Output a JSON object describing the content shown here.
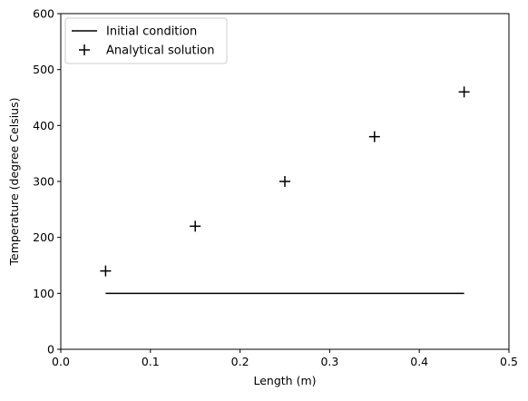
{
  "chart_data": {
    "type": "line",
    "title": "",
    "xlabel": "Length (m)",
    "ylabel": "Temperature (degree Celsius)",
    "xlim": [
      0.0,
      0.5
    ],
    "ylim": [
      0,
      600
    ],
    "xticks": [
      0.0,
      0.1,
      0.2,
      0.3,
      0.4,
      0.5
    ],
    "xtick_labels": [
      "0.0",
      "0.1",
      "0.2",
      "0.3",
      "0.4",
      "0.5"
    ],
    "yticks": [
      0,
      100,
      200,
      300,
      400,
      500,
      600
    ],
    "ytick_labels": [
      "0",
      "100",
      "200",
      "300",
      "400",
      "500",
      "600"
    ],
    "grid": false,
    "legend_position": "top-left",
    "series": [
      {
        "name": "Initial condition",
        "kind": "line",
        "color": "#000000",
        "x": [
          0.05,
          0.45
        ],
        "y": [
          100,
          100
        ]
      },
      {
        "name": "Analytical solution",
        "kind": "scatter",
        "marker": "plus",
        "color": "#000000",
        "x": [
          0.05,
          0.15,
          0.25,
          0.35,
          0.45
        ],
        "y": [
          140,
          220,
          300,
          380,
          460
        ]
      }
    ]
  }
}
